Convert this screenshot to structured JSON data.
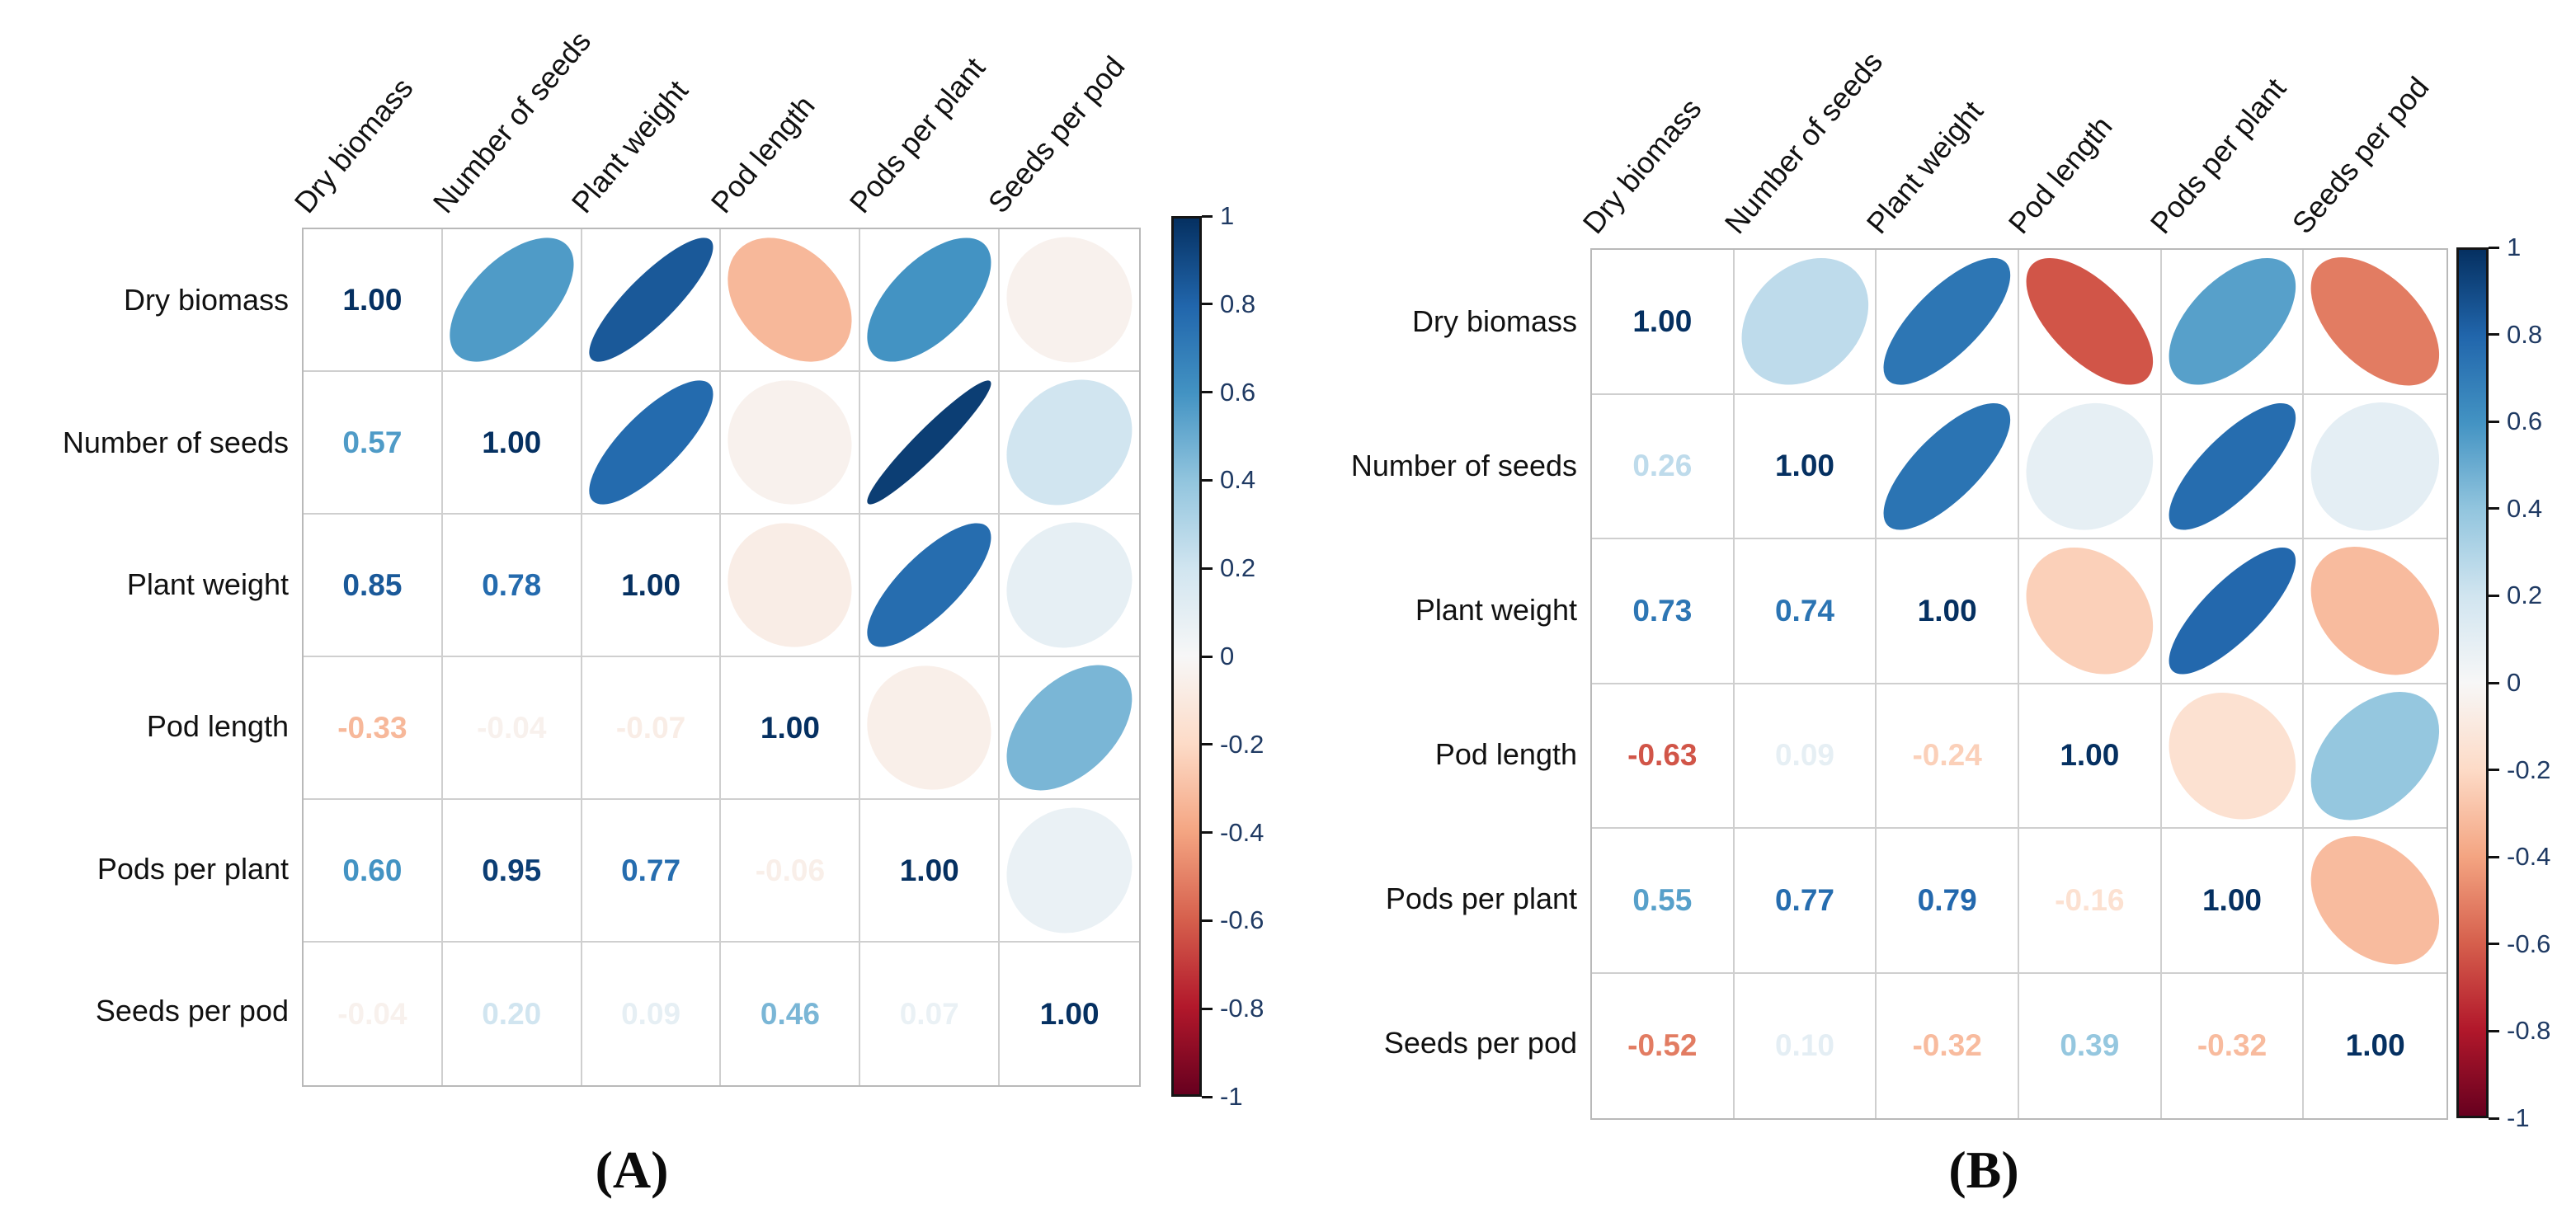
{
  "chart_data": [
    {
      "type": "heatmap",
      "panel_label": "(A)",
      "title": "",
      "variables": [
        "Dry biomass",
        "Number of seeds",
        "Plant weight",
        "Pod length",
        "Pods per plant",
        "Seeds per pod"
      ],
      "matrix": [
        [
          1.0,
          0.57,
          0.85,
          -0.33,
          0.6,
          -0.04
        ],
        [
          0.57,
          1.0,
          0.78,
          -0.04,
          0.95,
          0.2
        ],
        [
          0.85,
          0.78,
          1.0,
          -0.07,
          0.77,
          0.09
        ],
        [
          -0.33,
          -0.04,
          -0.07,
          1.0,
          -0.06,
          0.46
        ],
        [
          0.6,
          0.95,
          0.77,
          -0.06,
          1.0,
          0.07
        ],
        [
          -0.04,
          0.2,
          0.09,
          0.46,
          0.07,
          1.0
        ]
      ],
      "display": "lower-triangle: numbers; upper-triangle: correlation ellipses; diagonal: 1.00",
      "legend_position": "right",
      "colorbar": {
        "min": -1,
        "max": 1,
        "tick_labels": [
          "1",
          "0.8",
          "0.6",
          "0.4",
          "0.2",
          "0",
          "-0.2",
          "-0.4",
          "-0.6",
          "-0.8",
          "-1"
        ]
      }
    },
    {
      "type": "heatmap",
      "panel_label": "(B)",
      "title": "",
      "variables": [
        "Dry biomass",
        "Number of seeds",
        "Plant weight",
        "Pod length",
        "Pods per plant",
        "Seeds per pod"
      ],
      "matrix": [
        [
          1.0,
          0.26,
          0.73,
          -0.63,
          0.55,
          -0.52
        ],
        [
          0.26,
          1.0,
          0.74,
          0.09,
          0.77,
          0.1
        ],
        [
          0.73,
          0.74,
          1.0,
          -0.24,
          0.79,
          -0.32
        ],
        [
          -0.63,
          0.09,
          -0.24,
          1.0,
          -0.16,
          0.39
        ],
        [
          0.55,
          0.77,
          0.79,
          -0.16,
          1.0,
          -0.32
        ],
        [
          -0.52,
          0.1,
          -0.32,
          0.39,
          -0.32,
          1.0
        ]
      ],
      "display": "lower-triangle: numbers; upper-triangle: correlation ellipses; diagonal: 1.00",
      "legend_position": "right",
      "colorbar": {
        "min": -1,
        "max": 1,
        "tick_labels": [
          "1",
          "0.8",
          "0.6",
          "0.4",
          "0.2",
          "0",
          "-0.2",
          "-0.4",
          "-0.6",
          "-0.8",
          "-1"
        ]
      }
    }
  ],
  "colors": {
    "grid_line": "#cfcfcf",
    "matrix_border": "#b9b9b9",
    "colorbar_frame": "#151515",
    "tick_label": "#1f3a63",
    "label_text": "#111111",
    "stops": [
      [
        -1.0,
        "#67001F"
      ],
      [
        -0.8,
        "#B2182B"
      ],
      [
        -0.6,
        "#D6604D"
      ],
      [
        -0.4,
        "#F4A582"
      ],
      [
        -0.2,
        "#FDDBC7"
      ],
      [
        0.0,
        "#F7F7F7"
      ],
      [
        0.2,
        "#D1E5F0"
      ],
      [
        0.4,
        "#92C5DE"
      ],
      [
        0.6,
        "#4393C3"
      ],
      [
        0.8,
        "#2166AC"
      ],
      [
        1.0,
        "#053061"
      ]
    ]
  }
}
